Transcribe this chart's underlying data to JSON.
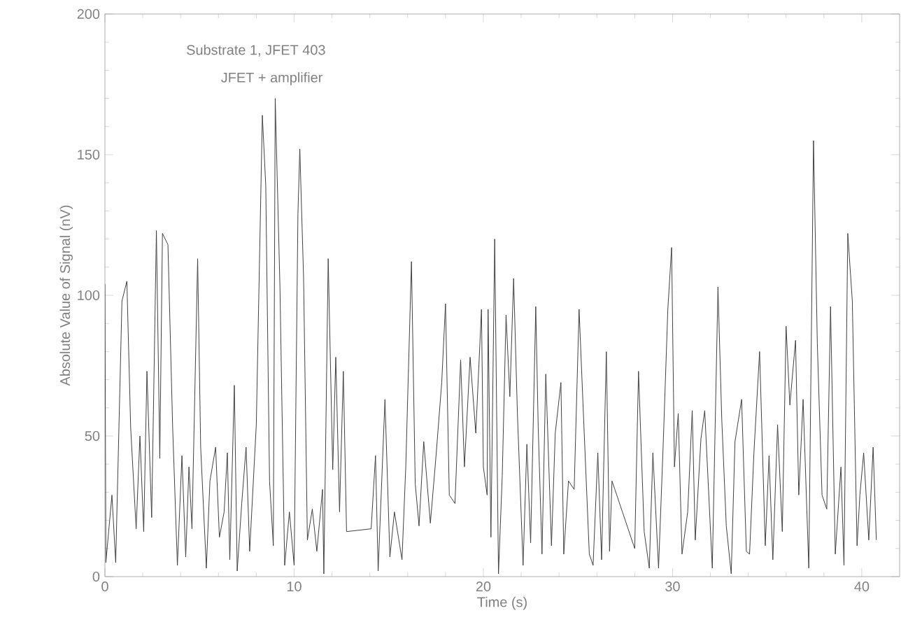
{
  "chart_data": {
    "type": "line",
    "xlabel": "Time (s)",
    "ylabel": "Absolute Value of Signal (nV)",
    "annotations": [
      "Substrate 1, JFET 403",
      "JFET + amplifier"
    ],
    "xlim": [
      0,
      42
    ],
    "ylim": [
      0,
      200
    ],
    "xticks": [
      0,
      10,
      20,
      30,
      40
    ],
    "yticks": [
      0,
      50,
      100,
      150,
      200
    ],
    "grid": false,
    "marker": "none",
    "line_style": "solid",
    "series": [
      {
        "color": "#404040",
        "x": [
          0,
          0.05,
          0.37,
          0.57,
          0.9,
          1.16,
          1.36,
          1.65,
          1.85,
          2.05,
          2.22,
          2.47,
          2.72,
          2.9,
          3.04,
          3.33,
          3.58,
          3.83,
          4.07,
          4.27,
          4.44,
          4.6,
          4.9,
          5.06,
          5.36,
          5.55,
          5.85,
          6.05,
          6.3,
          6.47,
          6.6,
          6.84,
          6.99,
          7.23,
          7.46,
          7.65,
          8.0,
          8.32,
          8.5,
          8.7,
          8.9,
          9.0,
          9.25,
          9.5,
          9.75,
          10.0,
          10.2,
          10.3,
          10.5,
          10.7,
          10.96,
          11.2,
          11.5,
          11.57,
          11.8,
          12.04,
          12.2,
          12.4,
          12.6,
          12.77,
          14.07,
          14.3,
          14.44,
          14.8,
          15.06,
          15.3,
          15.7,
          15.9,
          16.2,
          16.4,
          16.6,
          16.85,
          17.2,
          17.5,
          17.8,
          18.0,
          18.2,
          18.5,
          18.8,
          19.0,
          19.3,
          19.6,
          19.9,
          20.0,
          20.2,
          20.25,
          20.4,
          20.6,
          20.8,
          21.0,
          21.2,
          21.4,
          21.6,
          21.8,
          22.1,
          22.3,
          22.5,
          22.77,
          22.9,
          23.1,
          23.3,
          23.6,
          23.8,
          24.1,
          24.25,
          24.5,
          24.8,
          25.06,
          25.3,
          25.6,
          25.8,
          26.05,
          26.25,
          26.5,
          26.67,
          26.8,
          28.0,
          28.2,
          28.5,
          28.77,
          28.96,
          29.26,
          29.5,
          29.75,
          29.95,
          30.1,
          30.3,
          30.5,
          30.8,
          31.04,
          31.2,
          31.5,
          31.7,
          32.1,
          32.4,
          32.6,
          32.84,
          33.1,
          33.3,
          33.65,
          33.9,
          34.07,
          34.3,
          34.6,
          34.9,
          35.1,
          35.3,
          35.55,
          35.8,
          36.0,
          36.2,
          36.5,
          36.67,
          36.9,
          37.2,
          37.45,
          37.65,
          37.9,
          38.15,
          38.35,
          38.6,
          38.9,
          39.06,
          39.26,
          39.5,
          39.75,
          39.9,
          40.1,
          40.37,
          40.6,
          40.77
        ],
        "values": [
          104,
          5,
          29,
          5,
          98,
          105,
          53,
          17,
          50,
          16,
          73,
          21,
          123,
          42,
          122,
          118,
          53,
          4,
          43,
          7,
          39,
          17,
          113,
          46,
          3,
          34,
          46,
          14,
          23,
          44,
          6,
          68,
          2,
          26,
          46,
          9,
          54,
          164,
          139,
          34,
          11,
          170,
          103,
          4,
          23,
          4,
          129,
          152,
          106,
          13,
          24,
          9,
          31,
          1,
          113,
          38,
          78,
          23,
          73,
          16,
          17,
          43,
          2,
          63,
          7,
          23,
          6,
          39,
          112,
          33,
          18,
          48,
          19,
          43,
          69,
          97,
          29,
          26,
          77,
          39,
          78,
          51,
          95,
          39,
          29,
          95,
          14,
          120,
          1,
          36,
          93,
          64,
          106,
          58,
          4,
          47,
          12,
          96,
          53,
          8,
          72,
          11,
          51,
          69,
          8,
          34,
          31,
          95,
          56,
          8,
          4,
          44,
          6,
          80,
          9,
          34,
          10,
          73,
          16,
          3,
          44,
          3,
          46,
          95,
          117,
          39,
          58,
          8,
          23,
          59,
          13,
          49,
          59,
          3,
          103,
          56,
          18,
          1,
          48,
          63,
          9,
          8,
          44,
          80,
          11,
          43,
          6,
          54,
          16,
          89,
          61,
          84,
          29,
          63,
          3,
          155,
          83,
          29,
          24,
          96,
          8,
          39,
          4,
          122,
          98,
          11,
          29,
          44,
          13,
          46,
          13
        ]
      }
    ]
  }
}
